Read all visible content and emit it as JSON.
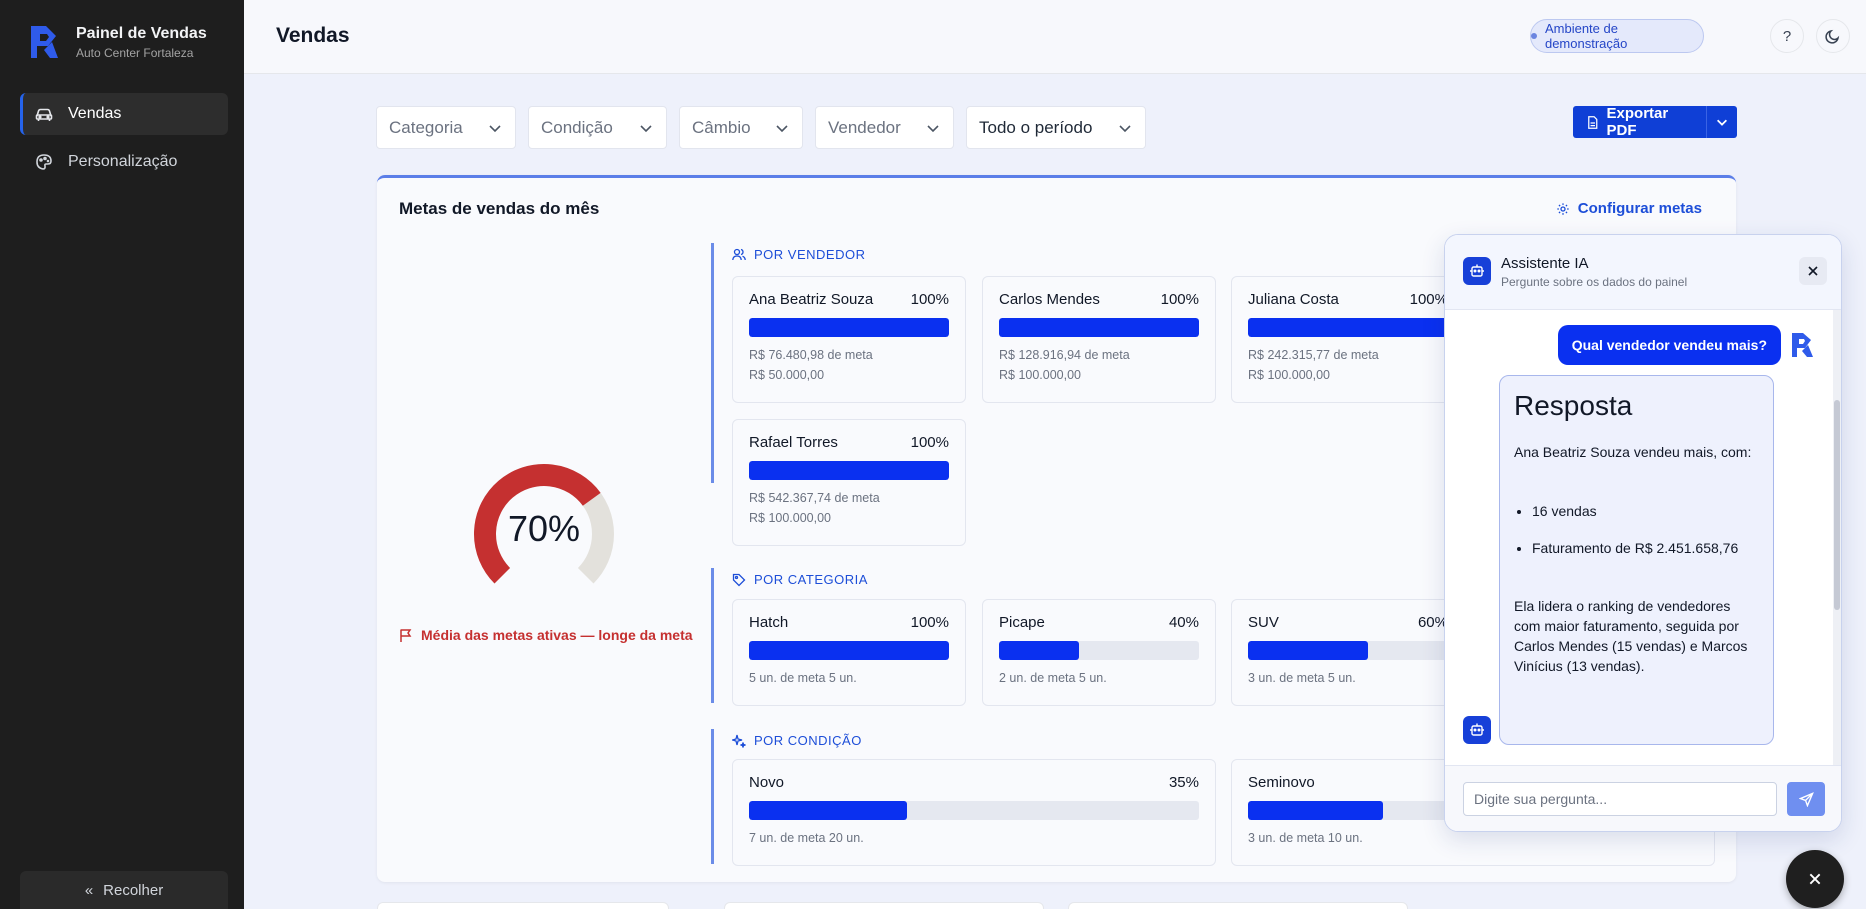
{
  "app": {
    "brand_title": "Painel de Vendas",
    "brand_subtitle": "Auto Center Fortaleza",
    "accent": "#0a30f0"
  },
  "sidebar": {
    "items": [
      {
        "label": "Vendas",
        "icon": "car-icon",
        "active": true
      },
      {
        "label": "Personalização",
        "icon": "palette-icon",
        "active": false
      }
    ],
    "collapse_label": "Recolher"
  },
  "header": {
    "title": "Vendas",
    "env_badge": "Ambiente de demonstração"
  },
  "filters": {
    "categoria": "Categoria",
    "condicao": "Condição",
    "cambio": "Câmbio",
    "vendedor": "Vendedor",
    "periodo": "Todo o período"
  },
  "export_label": "Exportar PDF",
  "goals": {
    "title": "Metas de vendas do mês",
    "config_label": "Configurar metas",
    "gauge_value": "70%",
    "gauge_fraction": 0.7,
    "status_text": "Média das metas ativas — longe da meta",
    "status_color": "#c53030",
    "by_seller": {
      "label": "POR VENDEDOR",
      "items": [
        {
          "name": "Ana Beatriz Souza",
          "pct": "100%",
          "fill": 1.0,
          "line1": "R$ 76.480,98 de meta",
          "line2": "R$ 50.000,00"
        },
        {
          "name": "Carlos Mendes",
          "pct": "100%",
          "fill": 1.0,
          "line1": "R$ 128.916,94 de meta",
          "line2": "R$ 100.000,00"
        },
        {
          "name": "Juliana Costa",
          "pct": "100%",
          "fill": 1.0,
          "line1": "R$ 242.315,77 de meta",
          "line2": "R$ 100.000,00"
        },
        {
          "name": "Rafael Torres",
          "pct": "100%",
          "fill": 1.0,
          "line1": "R$ 542.367,74 de meta",
          "line2": "R$ 100.000,00"
        }
      ]
    },
    "by_category": {
      "label": "POR CATEGORIA",
      "items": [
        {
          "name": "Hatch",
          "pct": "100%",
          "fill": 1.0,
          "line1": "5 un. de meta 5 un."
        },
        {
          "name": "Picape",
          "pct": "40%",
          "fill": 0.4,
          "line1": "2 un. de meta 5 un."
        },
        {
          "name": "SUV",
          "pct": "60%",
          "fill": 0.6,
          "line1": "3 un. de meta 5 un."
        }
      ]
    },
    "by_condition": {
      "label": "POR CONDIÇÃO",
      "items": [
        {
          "name": "Novo",
          "pct": "35%",
          "fill": 0.35,
          "line1": "7 un. de meta 20 un."
        },
        {
          "name": "Seminovo",
          "pct": "",
          "fill": 0.3,
          "line1": "3 un. de meta 10 un."
        }
      ]
    }
  },
  "chat": {
    "title": "Assistente IA",
    "subtitle": "Pergunte sobre os dados do painel",
    "user_message": "Qual vendedor vendeu mais?",
    "answer_heading": "Resposta",
    "answer_intro": "Ana Beatriz Souza vendeu mais, com:",
    "answer_bullets": [
      "16 vendas",
      "Faturamento de R$ 2.451.658,76"
    ],
    "answer_outro": "Ela lidera o ranking de vendedores com maior faturamento, seguida por Carlos Mendes (15 vendas) e Marcos Vinícius (13 vendas).",
    "input_placeholder": "Digite sua pergunta..."
  }
}
